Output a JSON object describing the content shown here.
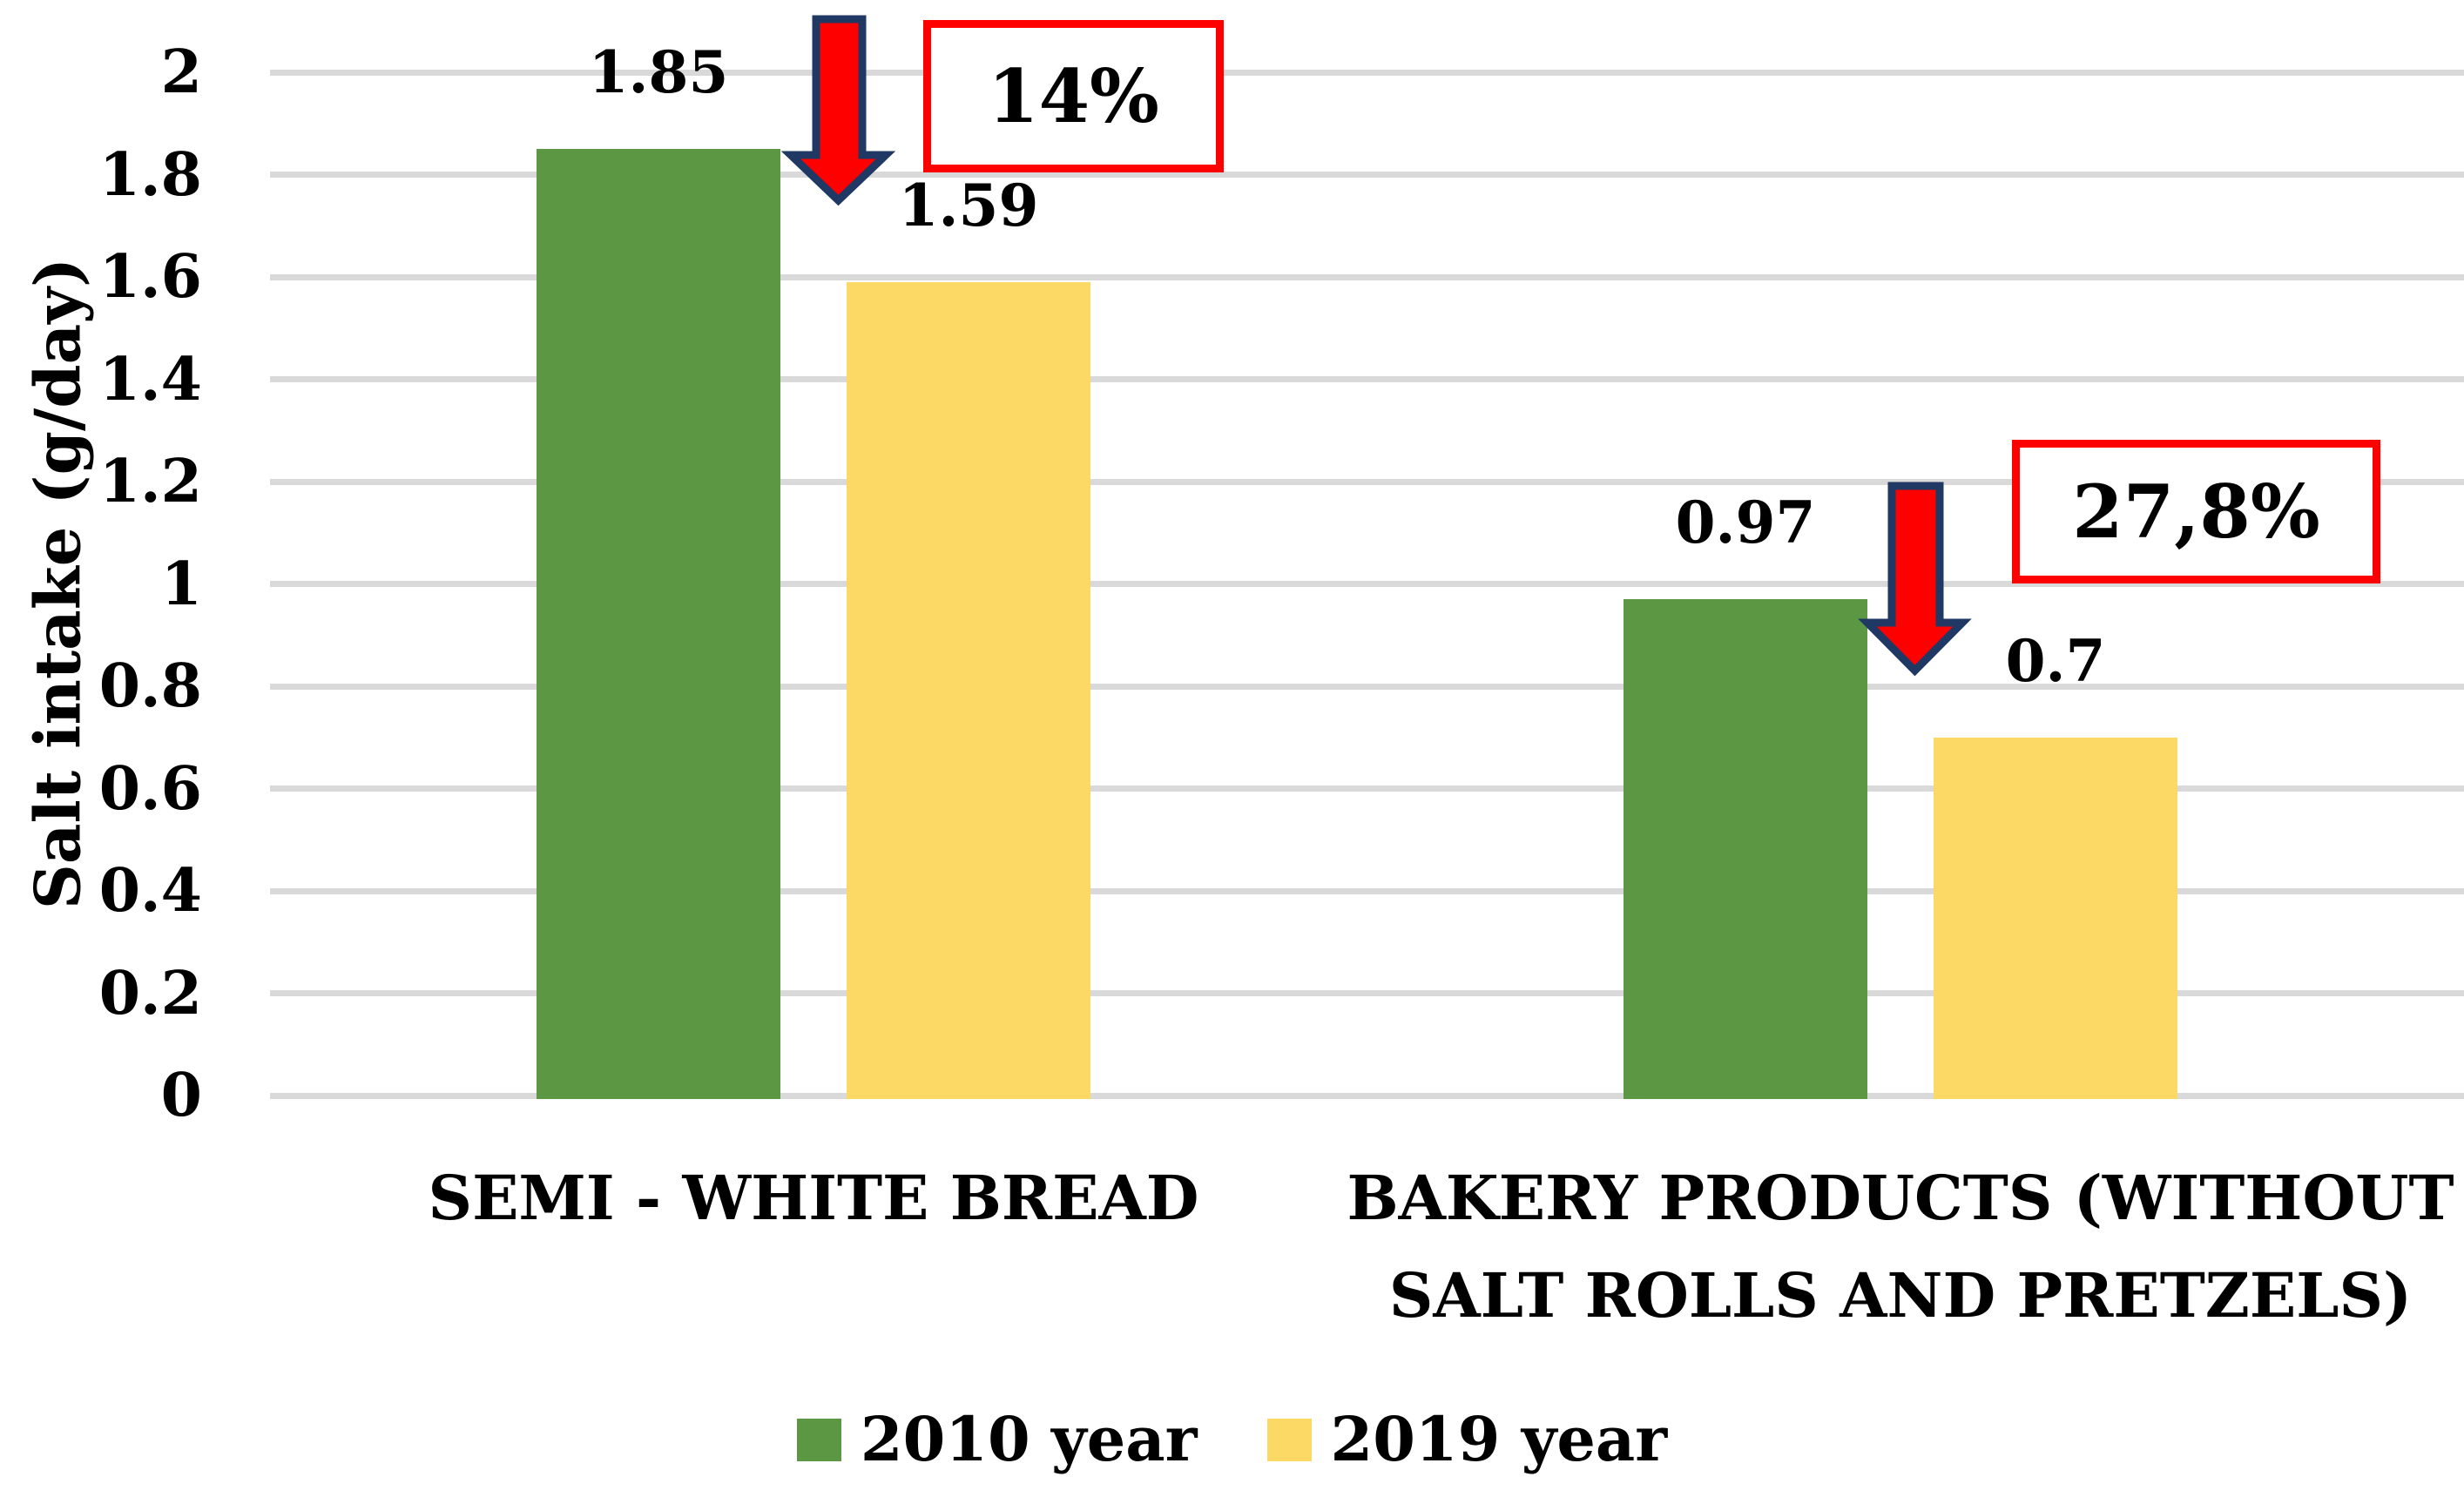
{
  "figure": {
    "background": "#FFFFFF",
    "text_color": "#000000"
  },
  "chart_data": {
    "type": "bar",
    "title": "",
    "xlabel": "",
    "ylabel": "Salt intake (g/day)",
    "ylim": [
      0,
      2
    ],
    "grid": true,
    "gridline_color": "#D9D9D9",
    "legend_position": "bottom",
    "y_tick_values": [
      2,
      1.8,
      1.6,
      1.4,
      1.2,
      1,
      0.8,
      0.6,
      0.4,
      0.2,
      0
    ],
    "y_tick_labels": [
      "2",
      "1.8",
      "1.6",
      "1.4",
      "1.2",
      "1",
      "0.8",
      "0.6",
      "0.4",
      "0.2",
      "0"
    ],
    "categories": [
      "SEMI - WHITE BREAD",
      "BAKERY PRODUCTS (WITHOUT SALT ROLLS AND PRETZELS)"
    ],
    "categories_display_lines": [
      [
        "SEMI - WHITE BREAD"
      ],
      [
        "BAKERY PRODUCTS (WITHOUT",
        "SALT ROLLS AND PRETZELS)"
      ]
    ],
    "series": [
      {
        "name": "2010 year",
        "color": "#5C9843",
        "values": [
          1.85,
          0.97
        ],
        "value_labels": [
          "1.85",
          "0.97"
        ]
      },
      {
        "name": "2019 year",
        "color": "#FCD864",
        "values": [
          1.59,
          0.7
        ],
        "value_labels": [
          "1.59",
          "0.7"
        ]
      }
    ],
    "annotations": [
      {
        "text": "14%",
        "arrow": "down",
        "arrow_fill": "#FF0000",
        "arrow_outline": "#1F3864",
        "box_border_color": "#FF0000"
      },
      {
        "text": "27,8%",
        "arrow": "down",
        "arrow_fill": "#FF0000",
        "arrow_outline": "#1F3864",
        "box_border_color": "#FF0000"
      }
    ]
  }
}
